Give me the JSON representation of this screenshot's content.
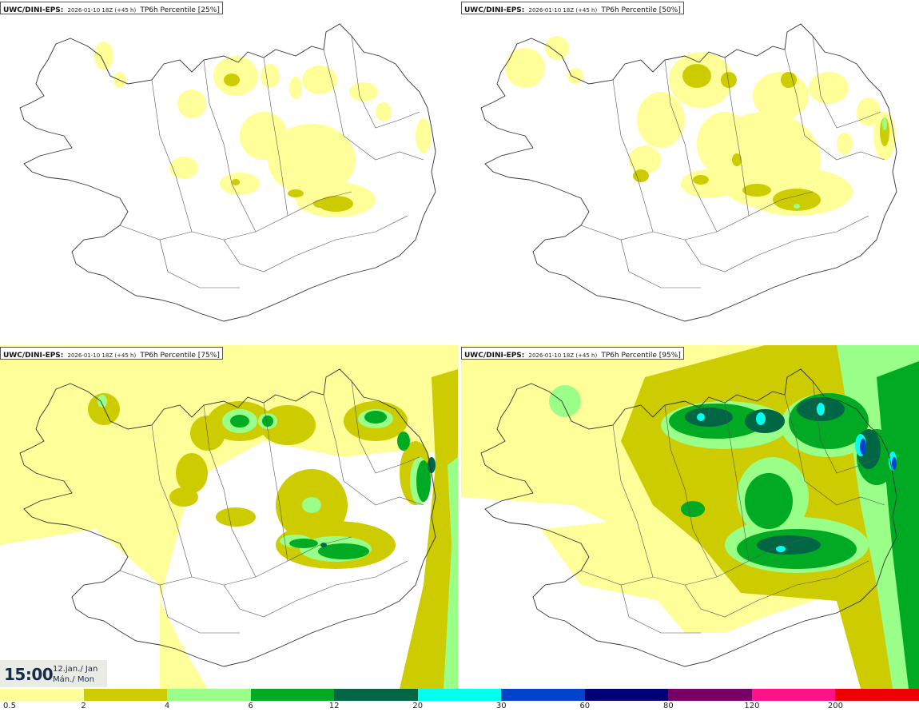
{
  "panels": [
    {
      "model": "UWC/DINI-EPS",
      "run": "2026-01-10 18Z (+45 h)",
      "product": "TP6h Percentile [25%]"
    },
    {
      "model": "UWC/DINI-EPS",
      "run": "2026-01-10 18Z (+45 h)",
      "product": "TP6h Percentile [50%]"
    },
    {
      "model": "UWC/DINI-EPS",
      "run": "2026-01-10 18Z (+45 h)",
      "product": "TP6h Percentile [75%]"
    },
    {
      "model": "UWC/DINI-EPS",
      "run": "2026-01-10 18Z (+45 h)",
      "product": "TP6h Percentile [95%]"
    }
  ],
  "valid_time": {
    "time": "15:00",
    "date_line1": "12.jan./ Jan",
    "date_line2": "Mán./ Mon"
  },
  "legend": {
    "labels": [
      "0.5",
      "2",
      "4",
      "6",
      "12",
      "20",
      "30",
      "60",
      "80",
      "120",
      "200"
    ],
    "colors": [
      "#ffff99",
      "#cccc00",
      "#99ff88",
      "#00aa22",
      "#006644",
      "#00ffee",
      "#0044cc",
      "#000077",
      "#770066",
      "#ff1188",
      "#ee0000"
    ]
  },
  "map_colors": {
    "c1": "#ffff99",
    "c2": "#cccc00",
    "c3": "#99ff88",
    "c4": "#00aa22",
    "c5": "#006644",
    "c6": "#00ffee",
    "c7": "#0044cc",
    "outline": "#333333"
  }
}
